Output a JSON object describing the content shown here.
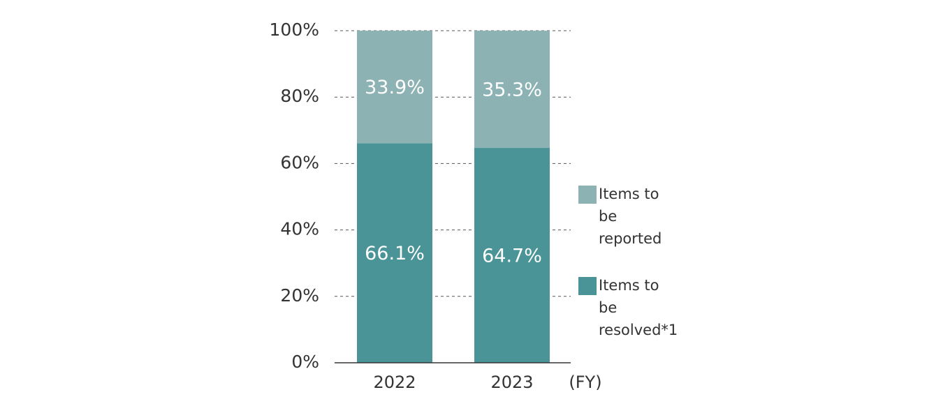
{
  "chart_data": {
    "type": "stacked_bar",
    "categories": [
      "2022",
      "2023"
    ],
    "x_label": "(FY)",
    "series": [
      {
        "name": "Items to be resolved*1",
        "color": "#4a9497",
        "values": [
          66.1,
          64.7
        ],
        "value_labels": [
          "66.1%",
          "64.7%"
        ]
      },
      {
        "name": "Items to be reported",
        "color": "#8db2b3",
        "values": [
          33.9,
          35.3
        ],
        "value_labels": [
          "33.9%",
          "35.3%"
        ]
      }
    ],
    "ylim": [
      0,
      100
    ],
    "yticks": [
      {
        "value": 0,
        "label": "0%"
      },
      {
        "value": 20,
        "label": "20%"
      },
      {
        "value": 40,
        "label": "40%"
      },
      {
        "value": 60,
        "label": "60%"
      },
      {
        "value": 80,
        "label": "80%"
      },
      {
        "value": 100,
        "label": "100%"
      }
    ],
    "grid": true,
    "legend": "right"
  }
}
